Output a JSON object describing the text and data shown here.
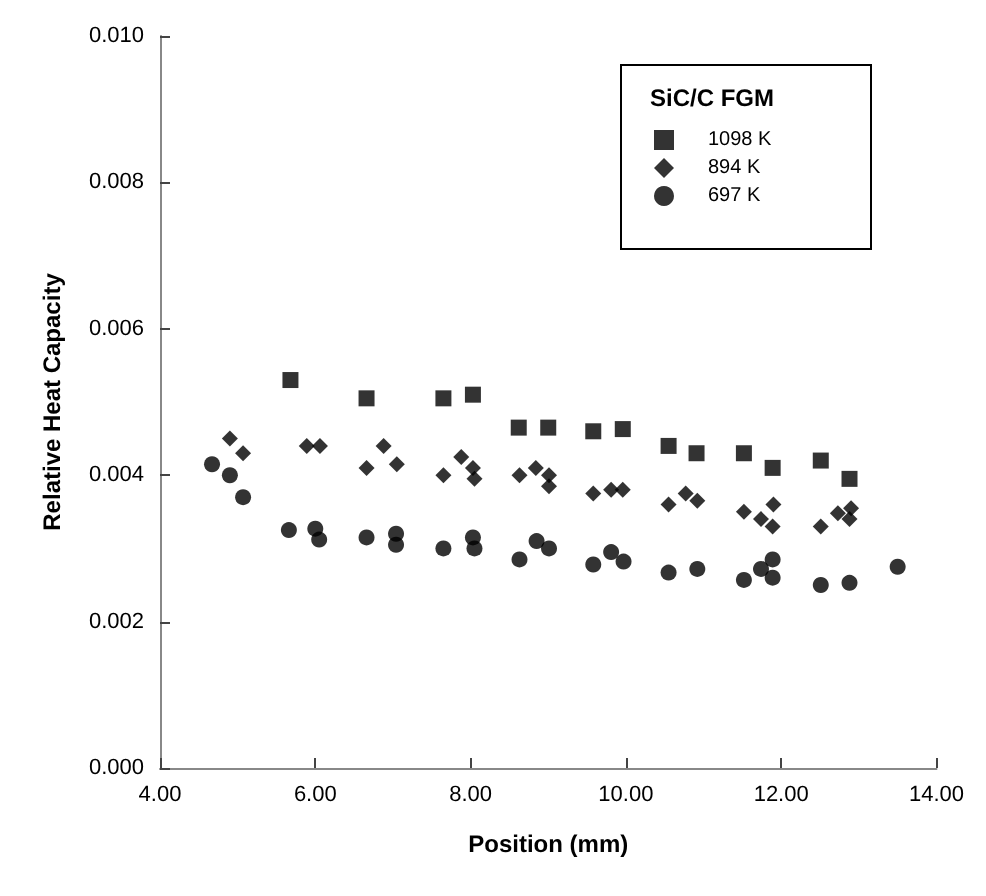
{
  "chart_data": {
    "type": "scatter",
    "xlabel": "Position (mm)",
    "ylabel": "Relative Heat Capacity",
    "legend_title": "SiC/C FGM",
    "xlim": [
      4,
      14
    ],
    "xticks": [
      {
        "value": 4,
        "label": "4.00"
      },
      {
        "value": 6,
        "label": "6.00"
      },
      {
        "value": 8,
        "label": "8.00"
      },
      {
        "value": 10,
        "label": "10.00"
      },
      {
        "value": 12,
        "label": "12.00"
      },
      {
        "value": 14,
        "label": "14.00"
      }
    ],
    "ylim": [
      0,
      0.01
    ],
    "yticks": [
      {
        "value": 0,
        "label": "0.000"
      },
      {
        "value": 0.002,
        "label": "0.002"
      },
      {
        "value": 0.004,
        "label": "0.004"
      },
      {
        "value": 0.006,
        "label": "0.006"
      },
      {
        "value": 0.008,
        "label": "0.008"
      },
      {
        "value": 0.01,
        "label": "0.010"
      }
    ],
    "grid": false,
    "legend": "top right",
    "series": [
      {
        "name": "1098 K",
        "color": "#000000",
        "marker": "square",
        "x": [
          5.68,
          6.66,
          7.65,
          8.03,
          8.62,
          9.0,
          9.58,
          9.96,
          10.55,
          10.91,
          11.52,
          11.89,
          12.51,
          12.88
        ],
        "values": [
          0.0053,
          0.00505,
          0.00505,
          0.0051,
          0.00465,
          0.00465,
          0.0046,
          0.00463,
          0.0044,
          0.0043,
          0.0043,
          0.0041,
          0.0042,
          0.00395
        ]
      },
      {
        "name": "894 K",
        "color": "#000000",
        "marker": "diamond",
        "x": [
          4.9,
          5.07,
          5.89,
          6.06,
          6.88,
          6.66,
          7.05,
          7.65,
          7.88,
          8.03,
          8.05,
          8.63,
          8.84,
          9.01,
          9.01,
          9.58,
          9.81,
          9.96,
          10.55,
          10.77,
          10.92,
          11.52,
          11.74,
          11.89,
          11.9,
          12.51,
          12.73,
          12.9,
          12.88
        ],
        "values": [
          0.0045,
          0.0043,
          0.0044,
          0.0044,
          0.0044,
          0.0041,
          0.00415,
          0.004,
          0.00425,
          0.0041,
          0.00395,
          0.004,
          0.0041,
          0.004,
          0.00385,
          0.00375,
          0.0038,
          0.0038,
          0.0036,
          0.00375,
          0.00365,
          0.0035,
          0.0034,
          0.0033,
          0.0036,
          0.0033,
          0.00348,
          0.00355,
          0.0034
        ]
      },
      {
        "name": "697 K",
        "color": "#000000",
        "marker": "circle",
        "x": [
          4.67,
          4.9,
          5.07,
          5.66,
          6.0,
          6.05,
          6.66,
          7.04,
          7.04,
          7.65,
          8.03,
          8.05,
          8.63,
          8.85,
          9.01,
          9.58,
          9.81,
          9.97,
          10.55,
          10.92,
          11.52,
          11.74,
          11.89,
          11.89,
          12.51,
          12.88,
          13.5
        ],
        "values": [
          0.00415,
          0.004,
          0.0037,
          0.00325,
          0.00327,
          0.00312,
          0.00315,
          0.0032,
          0.00305,
          0.003,
          0.00315,
          0.003,
          0.00285,
          0.0031,
          0.003,
          0.00278,
          0.00295,
          0.00282,
          0.00267,
          0.00272,
          0.00257,
          0.00272,
          0.00285,
          0.0026,
          0.0025,
          0.00253,
          0.00275
        ]
      }
    ]
  }
}
